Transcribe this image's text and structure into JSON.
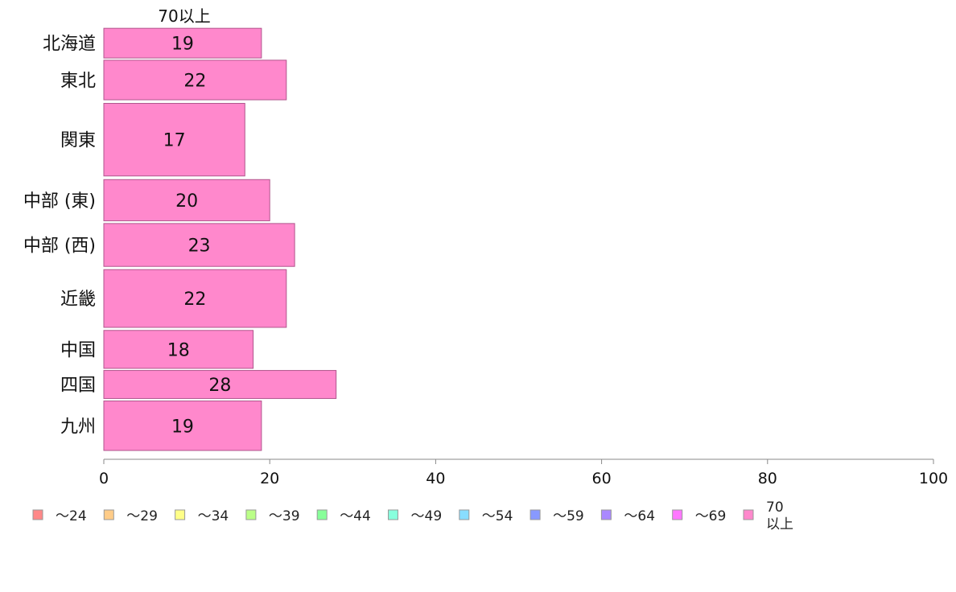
{
  "chart_data": {
    "type": "bar",
    "orientation": "horizontal",
    "column_header": "70以上",
    "categories": [
      "北海道",
      "東北",
      "関東",
      "中部 (東)",
      "中部 (西)",
      "近畿",
      "中国",
      "四国",
      "九州"
    ],
    "series": [
      {
        "name": "70以上",
        "color": "#ff88cc",
        "values": [
          19,
          22,
          17,
          20,
          23,
          22,
          18,
          28,
          19
        ]
      }
    ],
    "category_weights": [
      0.9,
      1.2,
      2.2,
      1.25,
      1.3,
      1.75,
      1.15,
      0.85,
      1.5
    ],
    "xlim": [
      0,
      100
    ],
    "xticks": [
      0,
      20,
      40,
      60,
      80,
      100
    ],
    "grid": false,
    "legend": {
      "position": "bottom",
      "items": [
        {
          "label": "～24",
          "color": "#ff8888"
        },
        {
          "label": "～29",
          "color": "#ffcc88"
        },
        {
          "label": "～34",
          "color": "#ffff88"
        },
        {
          "label": "～39",
          "color": "#bbff88"
        },
        {
          "label": "～44",
          "color": "#88ff99"
        },
        {
          "label": "～49",
          "color": "#88ffdd"
        },
        {
          "label": "～54",
          "color": "#88ddff"
        },
        {
          "label": "～59",
          "color": "#8899ff"
        },
        {
          "label": "～64",
          "color": "#aa88ff"
        },
        {
          "label": "～69",
          "color": "#ff77ff"
        },
        {
          "label": "70\n以上",
          "color": "#ff88cc"
        }
      ]
    }
  }
}
